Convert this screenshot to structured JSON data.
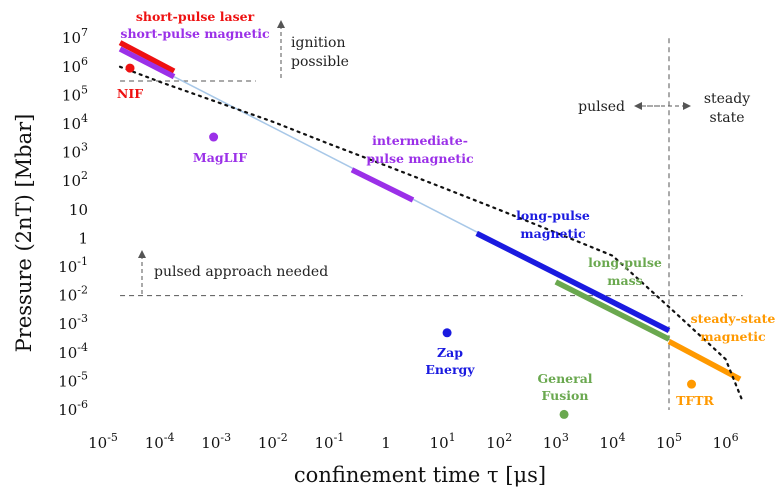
{
  "chart_data": {
    "type": "line",
    "xlabel": "confinement time τ [μs]",
    "ylabel": "Pressure (2nT) [Mbar]",
    "x_scale": "log",
    "y_scale": "log",
    "xlim": [
      1e-05,
      3000000.0
    ],
    "ylim": [
      1e-06,
      10000000.0
    ],
    "x_ticks": [
      {
        "v": 1e-05,
        "base": "10",
        "exp": "-5"
      },
      {
        "v": 0.0001,
        "base": "10",
        "exp": "-4"
      },
      {
        "v": 0.001,
        "base": "10",
        "exp": "-3"
      },
      {
        "v": 0.01,
        "base": "10",
        "exp": "-2"
      },
      {
        "v": 0.1,
        "base": "10",
        "exp": "-1"
      },
      {
        "v": 1,
        "base": "1",
        "exp": ""
      },
      {
        "v": 10,
        "base": "10",
        "exp": "1"
      },
      {
        "v": 100,
        "base": "10",
        "exp": "2"
      },
      {
        "v": 1000,
        "base": "10",
        "exp": "3"
      },
      {
        "v": 10000,
        "base": "10",
        "exp": "4"
      },
      {
        "v": 100000,
        "base": "10",
        "exp": "5"
      },
      {
        "v": 1000000,
        "base": "10",
        "exp": "6"
      }
    ],
    "y_ticks": [
      {
        "v": 10000000.0,
        "base": "10",
        "exp": "7"
      },
      {
        "v": 1000000.0,
        "base": "10",
        "exp": "6"
      },
      {
        "v": 100000.0,
        "base": "10",
        "exp": "5"
      },
      {
        "v": 10000.0,
        "base": "10",
        "exp": "4"
      },
      {
        "v": 1000.0,
        "base": "10",
        "exp": "3"
      },
      {
        "v": 100.0,
        "base": "10",
        "exp": "2"
      },
      {
        "v": 10,
        "base": "10",
        "exp": ""
      },
      {
        "v": 1,
        "base": "1",
        "exp": ""
      },
      {
        "v": 0.1,
        "base": "10",
        "exp": "-1"
      },
      {
        "v": 0.01,
        "base": "10",
        "exp": "-2"
      },
      {
        "v": 0.001,
        "base": "10",
        "exp": "-3"
      },
      {
        "v": 0.0001,
        "base": "10",
        "exp": "-4"
      },
      {
        "v": 1e-05,
        "base": "10",
        "exp": "-5"
      },
      {
        "v": 1e-06,
        "base": "10",
        "exp": "-6"
      }
    ],
    "segments": [
      {
        "name": "short-pulse laser",
        "color": "#ee1111",
        "x": [
          2e-05,
          0.00018
        ],
        "y": [
          7000000.0,
          700000.0
        ]
      },
      {
        "name": "short-pulse magnetic",
        "color": "#9b30e8",
        "x": [
          2e-05,
          0.00018
        ],
        "y": [
          4200000.0,
          450000.0
        ]
      },
      {
        "name": "thin guide",
        "color": "#a8c8e8",
        "x": [
          0.00018,
          100000.0
        ],
        "y": [
          450000.0,
          0.0006
        ]
      },
      {
        "name": "intermediate-pulse magnetic",
        "color": "#9b30e8",
        "x": [
          0.25,
          3
        ],
        "y": [
          250,
          22
        ]
      },
      {
        "name": "long-pulse magnetic",
        "color": "#1a1ae0",
        "x": [
          40,
          100000.0
        ],
        "y": [
          1.5,
          0.0006
        ]
      },
      {
        "name": "long-pulse mass",
        "color": "#6aa84f",
        "x": [
          1000,
          100000.0
        ],
        "y": [
          0.03,
          0.0003
        ]
      },
      {
        "name": "steady-state magnetic",
        "color": "#ff9900",
        "x": [
          100000.0,
          1800000.0
        ],
        "y": [
          0.00025,
          1.2e-05
        ]
      }
    ],
    "ignition_curve": {
      "x": [
        2e-05,
        0.0001,
        0.001,
        0.01,
        0.1,
        1,
        10,
        100,
        1000,
        10000,
        100000,
        1000000,
        2000000.0
      ],
      "y": [
        1000000.0,
        300000.0,
        60000.0,
        12000.0,
        2000,
        350,
        60,
        10,
        1.6,
        0.25,
        0.004,
        6e-05,
        2e-06
      ]
    },
    "points": [
      {
        "label": "NIF",
        "color": "#ee1111",
        "x": 3e-05,
        "y": 900000.0
      },
      {
        "label": "MagLIF",
        "color": "#9b30e8",
        "x": 0.0009,
        "y": 3500
      },
      {
        "label": "Zap Energy",
        "color": "#1a1ae0",
        "x": 12,
        "y": 0.0005
      },
      {
        "label": "General Fusion",
        "color": "#6aa84f",
        "x": 1400,
        "y": 7e-07
      },
      {
        "label": "TFTR",
        "color": "#ff9900",
        "x": 250000.0,
        "y": 8e-06
      }
    ],
    "labels": {
      "short_pulse_laser": "short-pulse laser",
      "short_pulse_magnetic": "short-pulse magnetic",
      "ignition_1": "ignition",
      "ignition_2": "possible",
      "intermediate_1": "intermediate-",
      "intermediate_2": "pulse magnetic",
      "long_magnetic_1": "long-pulse",
      "long_magnetic_2": "magnetic",
      "long_mass_1": "long-pulse",
      "long_mass_2": "mass",
      "steady_magnetic_1": "steady-state",
      "steady_magnetic_2": "magnetic",
      "pulsed": "pulsed",
      "steady_1": "steady",
      "steady_2": "state",
      "pulsed_needed": "pulsed approach needed",
      "nif": "NIF",
      "maglif": "MagLIF",
      "zap_1": "Zap",
      "zap_2": "Energy",
      "gf_1": "General",
      "gf_2": "Fusion",
      "tftr": "TFTR"
    }
  }
}
